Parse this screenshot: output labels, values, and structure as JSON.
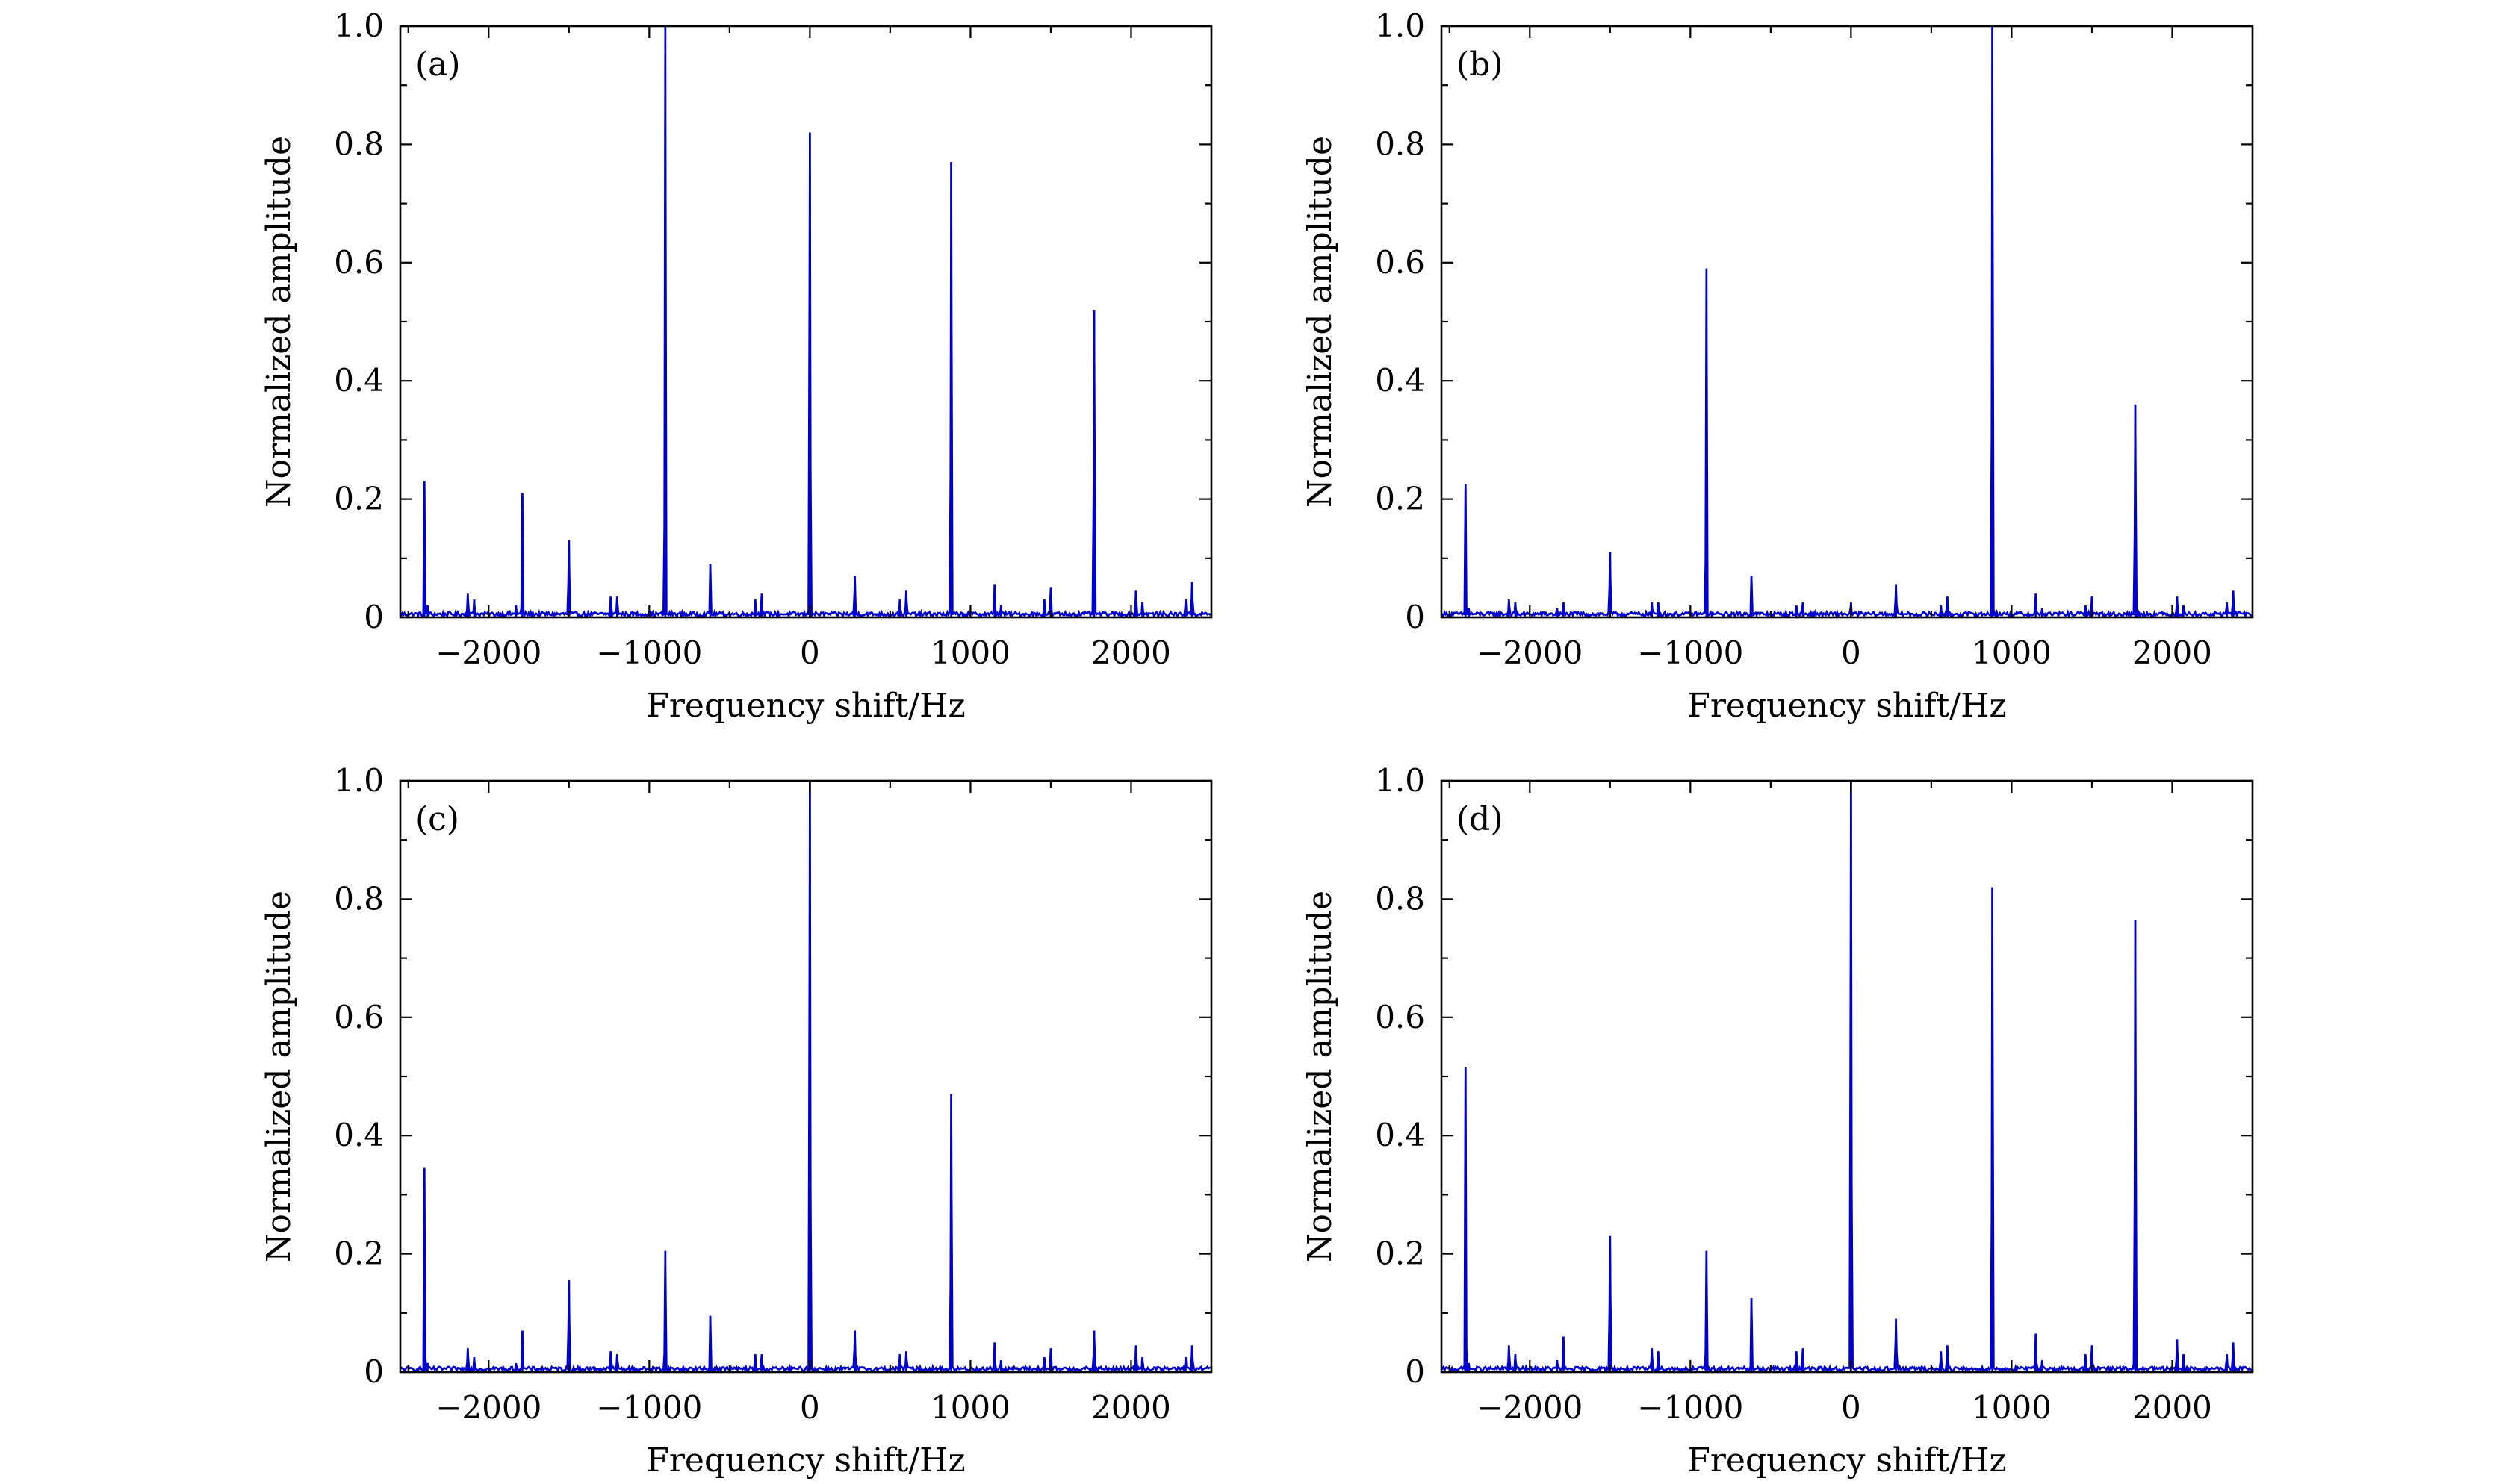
{
  "figure": {
    "line_color": "#0000cc",
    "axis_color": "#000000"
  },
  "chart_data": [
    {
      "type": "line",
      "panel_label": "(a)",
      "xlabel": "Frequency shift/Hz",
      "ylabel": "Normalized amplitude",
      "xlim": [
        -2550,
        2500
      ],
      "ylim": [
        0,
        1.0
      ],
      "xticks": [
        -2000,
        -1000,
        0,
        1000,
        2000
      ],
      "xtick_labels": [
        "−2000",
        "−1000",
        "0",
        "1000",
        "2000"
      ],
      "yticks": [
        0,
        0.2,
        0.4,
        0.6,
        0.8,
        1.0
      ],
      "ytick_labels": [
        "0",
        "0.2",
        "0.4",
        "0.6",
        "0.8",
        "1.0"
      ],
      "grid": false,
      "peaks": [
        {
          "x": -2400,
          "y": 0.23
        },
        {
          "x": -2380,
          "y": 0.02
        },
        {
          "x": -2130,
          "y": 0.04
        },
        {
          "x": -2090,
          "y": 0.03
        },
        {
          "x": -1830,
          "y": 0.02
        },
        {
          "x": -1790,
          "y": 0.21
        },
        {
          "x": -1500,
          "y": 0.13
        },
        {
          "x": -1240,
          "y": 0.035
        },
        {
          "x": -1200,
          "y": 0.035
        },
        {
          "x": -900,
          "y": 1.0
        },
        {
          "x": -620,
          "y": 0.09
        },
        {
          "x": -340,
          "y": 0.03
        },
        {
          "x": -300,
          "y": 0.04
        },
        {
          "x": 0,
          "y": 0.82
        },
        {
          "x": 280,
          "y": 0.07
        },
        {
          "x": 560,
          "y": 0.03
        },
        {
          "x": 600,
          "y": 0.045
        },
        {
          "x": 880,
          "y": 0.77
        },
        {
          "x": 1150,
          "y": 0.055
        },
        {
          "x": 1190,
          "y": 0.02
        },
        {
          "x": 1460,
          "y": 0.03
        },
        {
          "x": 1500,
          "y": 0.05
        },
        {
          "x": 1770,
          "y": 0.52
        },
        {
          "x": 2030,
          "y": 0.045
        },
        {
          "x": 2070,
          "y": 0.025
        },
        {
          "x": 2340,
          "y": 0.03
        },
        {
          "x": 2380,
          "y": 0.06
        }
      ]
    },
    {
      "type": "line",
      "panel_label": "(b)",
      "xlabel": "Frequency shift/Hz",
      "ylabel": "Normalized amplitude",
      "xlim": [
        -2550,
        2500
      ],
      "ylim": [
        0,
        1.0
      ],
      "xticks": [
        -2000,
        -1000,
        0,
        1000,
        2000
      ],
      "xtick_labels": [
        "−2000",
        "−1000",
        "0",
        "1000",
        "2000"
      ],
      "yticks": [
        0,
        0.2,
        0.4,
        0.6,
        0.8,
        1.0
      ],
      "ytick_labels": [
        "0",
        "0.2",
        "0.4",
        "0.6",
        "0.8",
        "1.0"
      ],
      "grid": false,
      "peaks": [
        {
          "x": -2400,
          "y": 0.225
        },
        {
          "x": -2380,
          "y": 0.015
        },
        {
          "x": -2130,
          "y": 0.03
        },
        {
          "x": -2090,
          "y": 0.025
        },
        {
          "x": -1830,
          "y": 0.015
        },
        {
          "x": -1790,
          "y": 0.025
        },
        {
          "x": -1500,
          "y": 0.11
        },
        {
          "x": -1240,
          "y": 0.025
        },
        {
          "x": -1200,
          "y": 0.025
        },
        {
          "x": -900,
          "y": 0.59
        },
        {
          "x": -620,
          "y": 0.07
        },
        {
          "x": -340,
          "y": 0.02
        },
        {
          "x": -300,
          "y": 0.025
        },
        {
          "x": 0,
          "y": 0.025
        },
        {
          "x": 280,
          "y": 0.055
        },
        {
          "x": 560,
          "y": 0.02
        },
        {
          "x": 600,
          "y": 0.035
        },
        {
          "x": 880,
          "y": 1.0
        },
        {
          "x": 1150,
          "y": 0.04
        },
        {
          "x": 1190,
          "y": 0.015
        },
        {
          "x": 1460,
          "y": 0.02
        },
        {
          "x": 1500,
          "y": 0.035
        },
        {
          "x": 1770,
          "y": 0.36
        },
        {
          "x": 2030,
          "y": 0.035
        },
        {
          "x": 2070,
          "y": 0.02
        },
        {
          "x": 2340,
          "y": 0.025
        },
        {
          "x": 2380,
          "y": 0.045
        }
      ]
    },
    {
      "type": "line",
      "panel_label": "(c)",
      "xlabel": "Frequency shift/Hz",
      "ylabel": "Normalized amplitude",
      "xlim": [
        -2550,
        2500
      ],
      "ylim": [
        0,
        1.0
      ],
      "xticks": [
        -2000,
        -1000,
        0,
        1000,
        2000
      ],
      "xtick_labels": [
        "−2000",
        "−1000",
        "0",
        "1000",
        "2000"
      ],
      "yticks": [
        0,
        0.2,
        0.4,
        0.6,
        0.8,
        1.0
      ],
      "ytick_labels": [
        "0",
        "0.2",
        "0.4",
        "0.6",
        "0.8",
        "1.0"
      ],
      "grid": false,
      "peaks": [
        {
          "x": -2400,
          "y": 0.345
        },
        {
          "x": -2380,
          "y": 0.015
        },
        {
          "x": -2130,
          "y": 0.04
        },
        {
          "x": -2090,
          "y": 0.025
        },
        {
          "x": -1830,
          "y": 0.015
        },
        {
          "x": -1790,
          "y": 0.07
        },
        {
          "x": -1500,
          "y": 0.155
        },
        {
          "x": -1240,
          "y": 0.035
        },
        {
          "x": -1200,
          "y": 0.03
        },
        {
          "x": -900,
          "y": 0.205
        },
        {
          "x": -620,
          "y": 0.095
        },
        {
          "x": -340,
          "y": 0.03
        },
        {
          "x": -300,
          "y": 0.03
        },
        {
          "x": 0,
          "y": 1.0
        },
        {
          "x": 280,
          "y": 0.07
        },
        {
          "x": 560,
          "y": 0.03
        },
        {
          "x": 600,
          "y": 0.035
        },
        {
          "x": 880,
          "y": 0.47
        },
        {
          "x": 1150,
          "y": 0.05
        },
        {
          "x": 1190,
          "y": 0.02
        },
        {
          "x": 1460,
          "y": 0.025
        },
        {
          "x": 1500,
          "y": 0.04
        },
        {
          "x": 1770,
          "y": 0.07
        },
        {
          "x": 2030,
          "y": 0.045
        },
        {
          "x": 2070,
          "y": 0.025
        },
        {
          "x": 2340,
          "y": 0.025
        },
        {
          "x": 2380,
          "y": 0.045
        }
      ]
    },
    {
      "type": "line",
      "panel_label": "(d)",
      "xlabel": "Frequency shift/Hz",
      "ylabel": "Normalized amplitude",
      "xlim": [
        -2550,
        2500
      ],
      "ylim": [
        0,
        1.0
      ],
      "xticks": [
        -2000,
        -1000,
        0,
        1000,
        2000
      ],
      "xtick_labels": [
        "−2000",
        "−1000",
        "0",
        "1000",
        "2000"
      ],
      "yticks": [
        0,
        0.2,
        0.4,
        0.6,
        0.8,
        1.0
      ],
      "ytick_labels": [
        "0",
        "0.2",
        "0.4",
        "0.6",
        "0.8",
        "1.0"
      ],
      "grid": false,
      "peaks": [
        {
          "x": -2400,
          "y": 0.515
        },
        {
          "x": -2380,
          "y": 0.015
        },
        {
          "x": -2130,
          "y": 0.045
        },
        {
          "x": -2090,
          "y": 0.03
        },
        {
          "x": -1830,
          "y": 0.02
        },
        {
          "x": -1790,
          "y": 0.06
        },
        {
          "x": -1500,
          "y": 0.23
        },
        {
          "x": -1240,
          "y": 0.04
        },
        {
          "x": -1200,
          "y": 0.035
        },
        {
          "x": -900,
          "y": 0.205
        },
        {
          "x": -620,
          "y": 0.125
        },
        {
          "x": -340,
          "y": 0.035
        },
        {
          "x": -300,
          "y": 0.04
        },
        {
          "x": 0,
          "y": 1.0
        },
        {
          "x": 280,
          "y": 0.09
        },
        {
          "x": 560,
          "y": 0.035
        },
        {
          "x": 600,
          "y": 0.045
        },
        {
          "x": 880,
          "y": 0.82
        },
        {
          "x": 1150,
          "y": 0.065
        },
        {
          "x": 1190,
          "y": 0.02
        },
        {
          "x": 1460,
          "y": 0.03
        },
        {
          "x": 1500,
          "y": 0.045
        },
        {
          "x": 1770,
          "y": 0.765
        },
        {
          "x": 2030,
          "y": 0.055
        },
        {
          "x": 2070,
          "y": 0.03
        },
        {
          "x": 2340,
          "y": 0.03
        },
        {
          "x": 2380,
          "y": 0.05
        }
      ]
    }
  ]
}
